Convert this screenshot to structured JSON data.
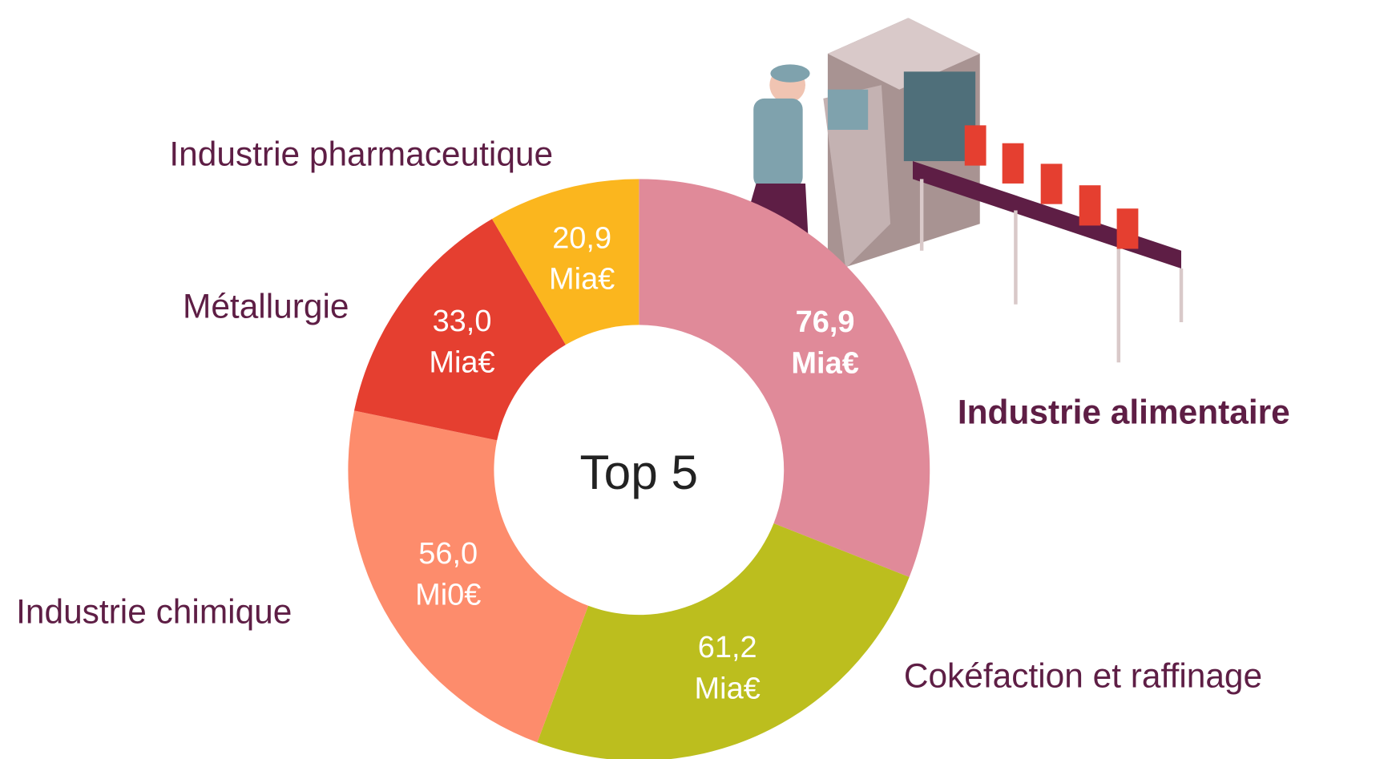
{
  "chart_data": {
    "type": "donut",
    "center_label": "Top 5",
    "categories": [
      "Industrie alimentaire",
      "Cokéfaction et raffinage",
      "Industrie chimique",
      "Métallurgie",
      "Industrie pharmaceutique"
    ],
    "values": [
      76.9,
      61.2,
      56.0,
      33.0,
      20.9
    ],
    "value_labels": [
      "76,9",
      "61,2",
      "56,0",
      "33,0",
      "20,9"
    ],
    "value_units": [
      "Mia€",
      "Mia€",
      "Mi0€",
      "Mia€",
      "Mia€"
    ],
    "colors": [
      "#e08a99",
      "#bcbe1e",
      "#fd8c6c",
      "#e53f30",
      "#fbb61e"
    ]
  }
}
